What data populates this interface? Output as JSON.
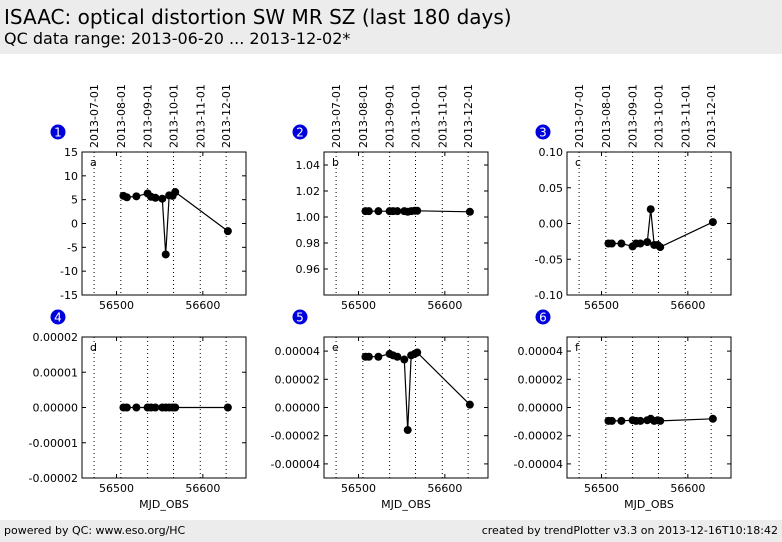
{
  "header": {
    "title": "ISAAC: optical distortion SW MR SZ (last 180 days)",
    "subtitle": "QC data range: 2013-06-20 ... 2013-12-02*"
  },
  "footer": {
    "left": "powered by QC: www.eso.org/HC",
    "right": "created by trendPlotter v3.3 on 2013-12-16T10:18:42"
  },
  "colors": {
    "marker": "#000000",
    "badge": "#0000dd",
    "header_bg": "#ececec"
  },
  "chart_data": [
    {
      "type": "line",
      "number": "1",
      "letter": "a",
      "xlabel": "",
      "xlim": [
        56460,
        56650
      ],
      "ylim": [
        -15,
        15
      ],
      "xticks": [
        "56500",
        "56600"
      ],
      "yticks": [
        "15",
        "10",
        "5",
        "0",
        "-5",
        "-10",
        "-15"
      ],
      "date_labels": [
        "2013-07-01",
        "2013-08-01",
        "2013-09-01",
        "2013-10-01",
        "2013-11-01",
        "2013-12-01"
      ],
      "x": [
        56508,
        56512,
        56523,
        56536,
        56540,
        56545,
        56553,
        56557,
        56561,
        56565,
        56568,
        56629
      ],
      "y": [
        5.8,
        5.5,
        5.7,
        6.3,
        5.6,
        5.4,
        5.2,
        -6.5,
        5.9,
        5.8,
        6.6,
        -1.6
      ]
    },
    {
      "type": "line",
      "number": "2",
      "letter": "b",
      "xlabel": "",
      "xlim": [
        56460,
        56650
      ],
      "ylim": [
        0.94,
        1.05
      ],
      "xticks": [
        "56500",
        "56600"
      ],
      "yticks": [
        "1.04",
        "1.02",
        "1.00",
        "0.98",
        "0.96"
      ],
      "date_labels": [
        "2013-07-01",
        "2013-08-01",
        "2013-09-01",
        "2013-10-01",
        "2013-11-01",
        "2013-12-01"
      ],
      "x": [
        56508,
        56512,
        56523,
        56536,
        56540,
        56545,
        56553,
        56557,
        56561,
        56565,
        56568,
        56629
      ],
      "y": [
        1.0045,
        1.0045,
        1.0045,
        1.0045,
        1.0045,
        1.0045,
        1.0045,
        1.004,
        1.0045,
        1.0048,
        1.0048,
        1.004
      ]
    },
    {
      "type": "line",
      "number": "3",
      "letter": "c",
      "xlabel": "",
      "xlim": [
        56460,
        56650
      ],
      "ylim": [
        -0.1,
        0.1
      ],
      "xticks": [
        "56500",
        "56600"
      ],
      "yticks": [
        "0.10",
        "0.05",
        "0.00",
        "-0.05",
        "-0.10"
      ],
      "date_labels": [
        "2013-07-01",
        "2013-08-01",
        "2013-09-01",
        "2013-10-01",
        "2013-11-01",
        "2013-12-01"
      ],
      "x": [
        56508,
        56512,
        56523,
        56536,
        56540,
        56545,
        56553,
        56557,
        56561,
        56565,
        56568,
        56629
      ],
      "y": [
        -0.028,
        -0.028,
        -0.028,
        -0.032,
        -0.028,
        -0.028,
        -0.026,
        0.02,
        -0.03,
        -0.03,
        -0.033,
        0.002
      ]
    },
    {
      "type": "line",
      "number": "4",
      "letter": "d",
      "xlabel": "MJD_OBS",
      "xlim": [
        56460,
        56650
      ],
      "ylim": [
        -2e-05,
        2e-05
      ],
      "xticks": [
        "56500",
        "56600"
      ],
      "yticks": [
        "0.00002",
        "0.00001",
        "0.00000",
        "-0.00001",
        "-0.00002"
      ],
      "date_labels": [],
      "x": [
        56508,
        56512,
        56523,
        56536,
        56540,
        56545,
        56553,
        56557,
        56561,
        56565,
        56568,
        56629
      ],
      "y": [
        0,
        0,
        0,
        0,
        0,
        0,
        0,
        0,
        0,
        0,
        0,
        0
      ]
    },
    {
      "type": "line",
      "number": "5",
      "letter": "e",
      "xlabel": "MJD_OBS",
      "xlim": [
        56460,
        56650
      ],
      "ylim": [
        -5e-05,
        5e-05
      ],
      "xticks": [
        "56500",
        "56600"
      ],
      "yticks": [
        "0.00004",
        "0.00002",
        "0.00000",
        "-0.00002",
        "-0.00004"
      ],
      "date_labels": [],
      "x": [
        56508,
        56512,
        56523,
        56536,
        56540,
        56545,
        56553,
        56557,
        56561,
        56565,
        56568,
        56629
      ],
      "y": [
        3.6e-05,
        3.6e-05,
        3.6e-05,
        3.8e-05,
        3.7e-05,
        3.6e-05,
        3.4e-05,
        -1.6e-05,
        3.7e-05,
        3.8e-05,
        3.9e-05,
        2e-06
      ]
    },
    {
      "type": "line",
      "number": "6",
      "letter": "f",
      "xlabel": "MJD_OBS",
      "xlim": [
        56460,
        56650
      ],
      "ylim": [
        -5e-05,
        5e-05
      ],
      "xticks": [
        "56500",
        "56600"
      ],
      "yticks": [
        "0.00004",
        "0.00002",
        "0.00000",
        "-0.00002",
        "-0.00004"
      ],
      "date_labels": [],
      "x": [
        56508,
        56512,
        56523,
        56536,
        56540,
        56545,
        56553,
        56557,
        56561,
        56565,
        56568,
        56629
      ],
      "y": [
        -9.5e-06,
        -9.5e-06,
        -9.5e-06,
        -9e-06,
        -9.5e-06,
        -9.5e-06,
        -9e-06,
        -8e-06,
        -9.5e-06,
        -9e-06,
        -9.5e-06,
        -8e-06
      ]
    }
  ],
  "date_markers_mjd": [
    56474,
    56505,
    56536,
    56566,
    56597,
    56627
  ]
}
